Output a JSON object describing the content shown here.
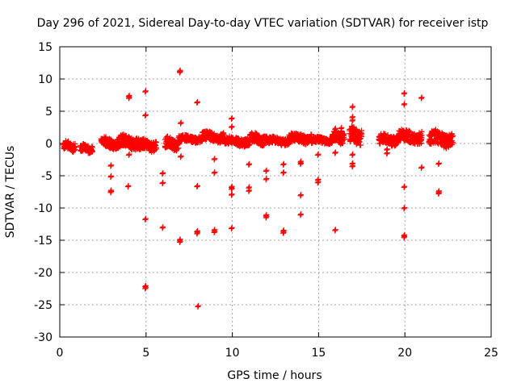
{
  "chart_data": {
    "type": "scatter",
    "title": "Day 296 of 2021, Sidereal Day-to-day VTEC variation (SDTVAR) for receiver istp",
    "xlabel": "GPS time / hours",
    "ylabel": "SDTVAR / TECUs",
    "xlim": [
      0,
      25
    ],
    "ylim": [
      -30,
      15
    ],
    "xticks": [
      0,
      5,
      10,
      15,
      20,
      25
    ],
    "yticks": [
      15,
      10,
      5,
      0,
      -5,
      -10,
      -15,
      -20,
      -25,
      -30
    ],
    "grid": true,
    "marker": "plus",
    "color": "#ff0000",
    "band_segments": [
      {
        "x0": 0.2,
        "x1": 0.9,
        "center": -0.4,
        "halfwidth": 0.9
      },
      {
        "x0": 1.2,
        "x1": 1.9,
        "center": -0.8,
        "halfwidth": 0.7
      },
      {
        "x0": 2.4,
        "x1": 3.4,
        "center": 0.0,
        "halfwidth": 1.0
      },
      {
        "x0": 3.4,
        "x1": 4.6,
        "center": 0.2,
        "halfwidth": 1.2
      },
      {
        "x0": 4.6,
        "x1": 5.6,
        "center": -0.3,
        "halfwidth": 1.0
      },
      {
        "x0": 6.1,
        "x1": 6.9,
        "center": 0.0,
        "halfwidth": 1.1
      },
      {
        "x0": 6.9,
        "x1": 8.2,
        "center": 0.7,
        "halfwidth": 0.6
      },
      {
        "x0": 8.2,
        "x1": 9.5,
        "center": 1.0,
        "halfwidth": 0.9
      },
      {
        "x0": 9.5,
        "x1": 11.0,
        "center": 0.3,
        "halfwidth": 0.8
      },
      {
        "x0": 11.0,
        "x1": 12.0,
        "center": 0.7,
        "halfwidth": 1.0
      },
      {
        "x0": 12.0,
        "x1": 13.3,
        "center": 0.4,
        "halfwidth": 0.7
      },
      {
        "x0": 13.3,
        "x1": 14.6,
        "center": 0.8,
        "halfwidth": 0.9
      },
      {
        "x0": 14.6,
        "x1": 15.8,
        "center": 0.5,
        "halfwidth": 0.6
      },
      {
        "x0": 15.8,
        "x1": 16.5,
        "center": 0.9,
        "halfwidth": 1.0
      },
      {
        "x0": 16.8,
        "x1": 17.5,
        "center": 1.2,
        "halfwidth": 1.6
      },
      {
        "x0": 18.5,
        "x1": 19.6,
        "center": 0.6,
        "halfwidth": 1.0
      },
      {
        "x0": 19.6,
        "x1": 21.0,
        "center": 1.0,
        "halfwidth": 1.2
      },
      {
        "x0": 21.4,
        "x1": 22.8,
        "center": 0.7,
        "halfwidth": 1.4
      }
    ],
    "outliers": [
      [
        2.95,
        -3.5
      ],
      [
        2.95,
        -5.2
      ],
      [
        2.95,
        -7.4
      ],
      [
        2.95,
        -7.6
      ],
      [
        4.0,
        7.3
      ],
      [
        4.0,
        7.0
      ],
      [
        3.95,
        -6.7
      ],
      [
        4.0,
        -1.8
      ],
      [
        4.95,
        8.0
      ],
      [
        4.95,
        4.3
      ],
      [
        4.95,
        -11.8
      ],
      [
        4.95,
        -22.2
      ],
      [
        4.95,
        -22.5
      ],
      [
        5.0,
        -0.3
      ],
      [
        5.95,
        -4.7
      ],
      [
        5.95,
        -6.2
      ],
      [
        5.95,
        -13.1
      ],
      [
        6.95,
        11.2
      ],
      [
        6.95,
        11.0
      ],
      [
        7.0,
        3.1
      ],
      [
        7.0,
        -2.1
      ],
      [
        6.95,
        -15.0
      ],
      [
        6.95,
        -15.3
      ],
      [
        7.95,
        6.3
      ],
      [
        7.95,
        -6.7
      ],
      [
        7.95,
        -13.7
      ],
      [
        7.95,
        -14.0
      ],
      [
        8.0,
        -25.3
      ],
      [
        8.95,
        -2.5
      ],
      [
        8.95,
        -4.6
      ],
      [
        8.95,
        -13.5
      ],
      [
        8.95,
        -13.8
      ],
      [
        9.95,
        3.8
      ],
      [
        9.95,
        2.5
      ],
      [
        9.95,
        -6.8
      ],
      [
        9.95,
        -7.1
      ],
      [
        9.95,
        -8.0
      ],
      [
        9.95,
        -13.2
      ],
      [
        10.95,
        -3.3
      ],
      [
        10.95,
        -6.9
      ],
      [
        10.95,
        -7.4
      ],
      [
        11.95,
        -4.3
      ],
      [
        11.95,
        -5.6
      ],
      [
        11.95,
        -11.2
      ],
      [
        11.95,
        -11.5
      ],
      [
        12.95,
        -3.3
      ],
      [
        12.95,
        -4.6
      ],
      [
        12.95,
        -13.6
      ],
      [
        12.95,
        -13.9
      ],
      [
        13.95,
        -2.9
      ],
      [
        13.95,
        -3.2
      ],
      [
        13.95,
        -8.1
      ],
      [
        13.95,
        -11.1
      ],
      [
        14.95,
        -1.8
      ],
      [
        14.95,
        -5.7
      ],
      [
        14.95,
        -6.1
      ],
      [
        15.95,
        2.2
      ],
      [
        15.95,
        -1.5
      ],
      [
        15.95,
        -13.5
      ],
      [
        16.3,
        2.3
      ],
      [
        16.3,
        1.8
      ],
      [
        16.95,
        5.6
      ],
      [
        16.95,
        4.0
      ],
      [
        16.95,
        3.5
      ],
      [
        16.95,
        -1.8
      ],
      [
        16.95,
        -3.2
      ],
      [
        16.95,
        -3.6
      ],
      [
        18.95,
        -1.0
      ],
      [
        18.95,
        -1.6
      ],
      [
        19.95,
        7.7
      ],
      [
        19.95,
        6.0
      ],
      [
        19.95,
        -6.8
      ],
      [
        19.95,
        -10.1
      ],
      [
        19.95,
        -14.3
      ],
      [
        19.95,
        -14.6
      ],
      [
        20.95,
        7.0
      ],
      [
        20.95,
        -3.8
      ],
      [
        21.95,
        -3.2
      ],
      [
        21.95,
        -7.5
      ],
      [
        21.95,
        -7.8
      ]
    ]
  }
}
